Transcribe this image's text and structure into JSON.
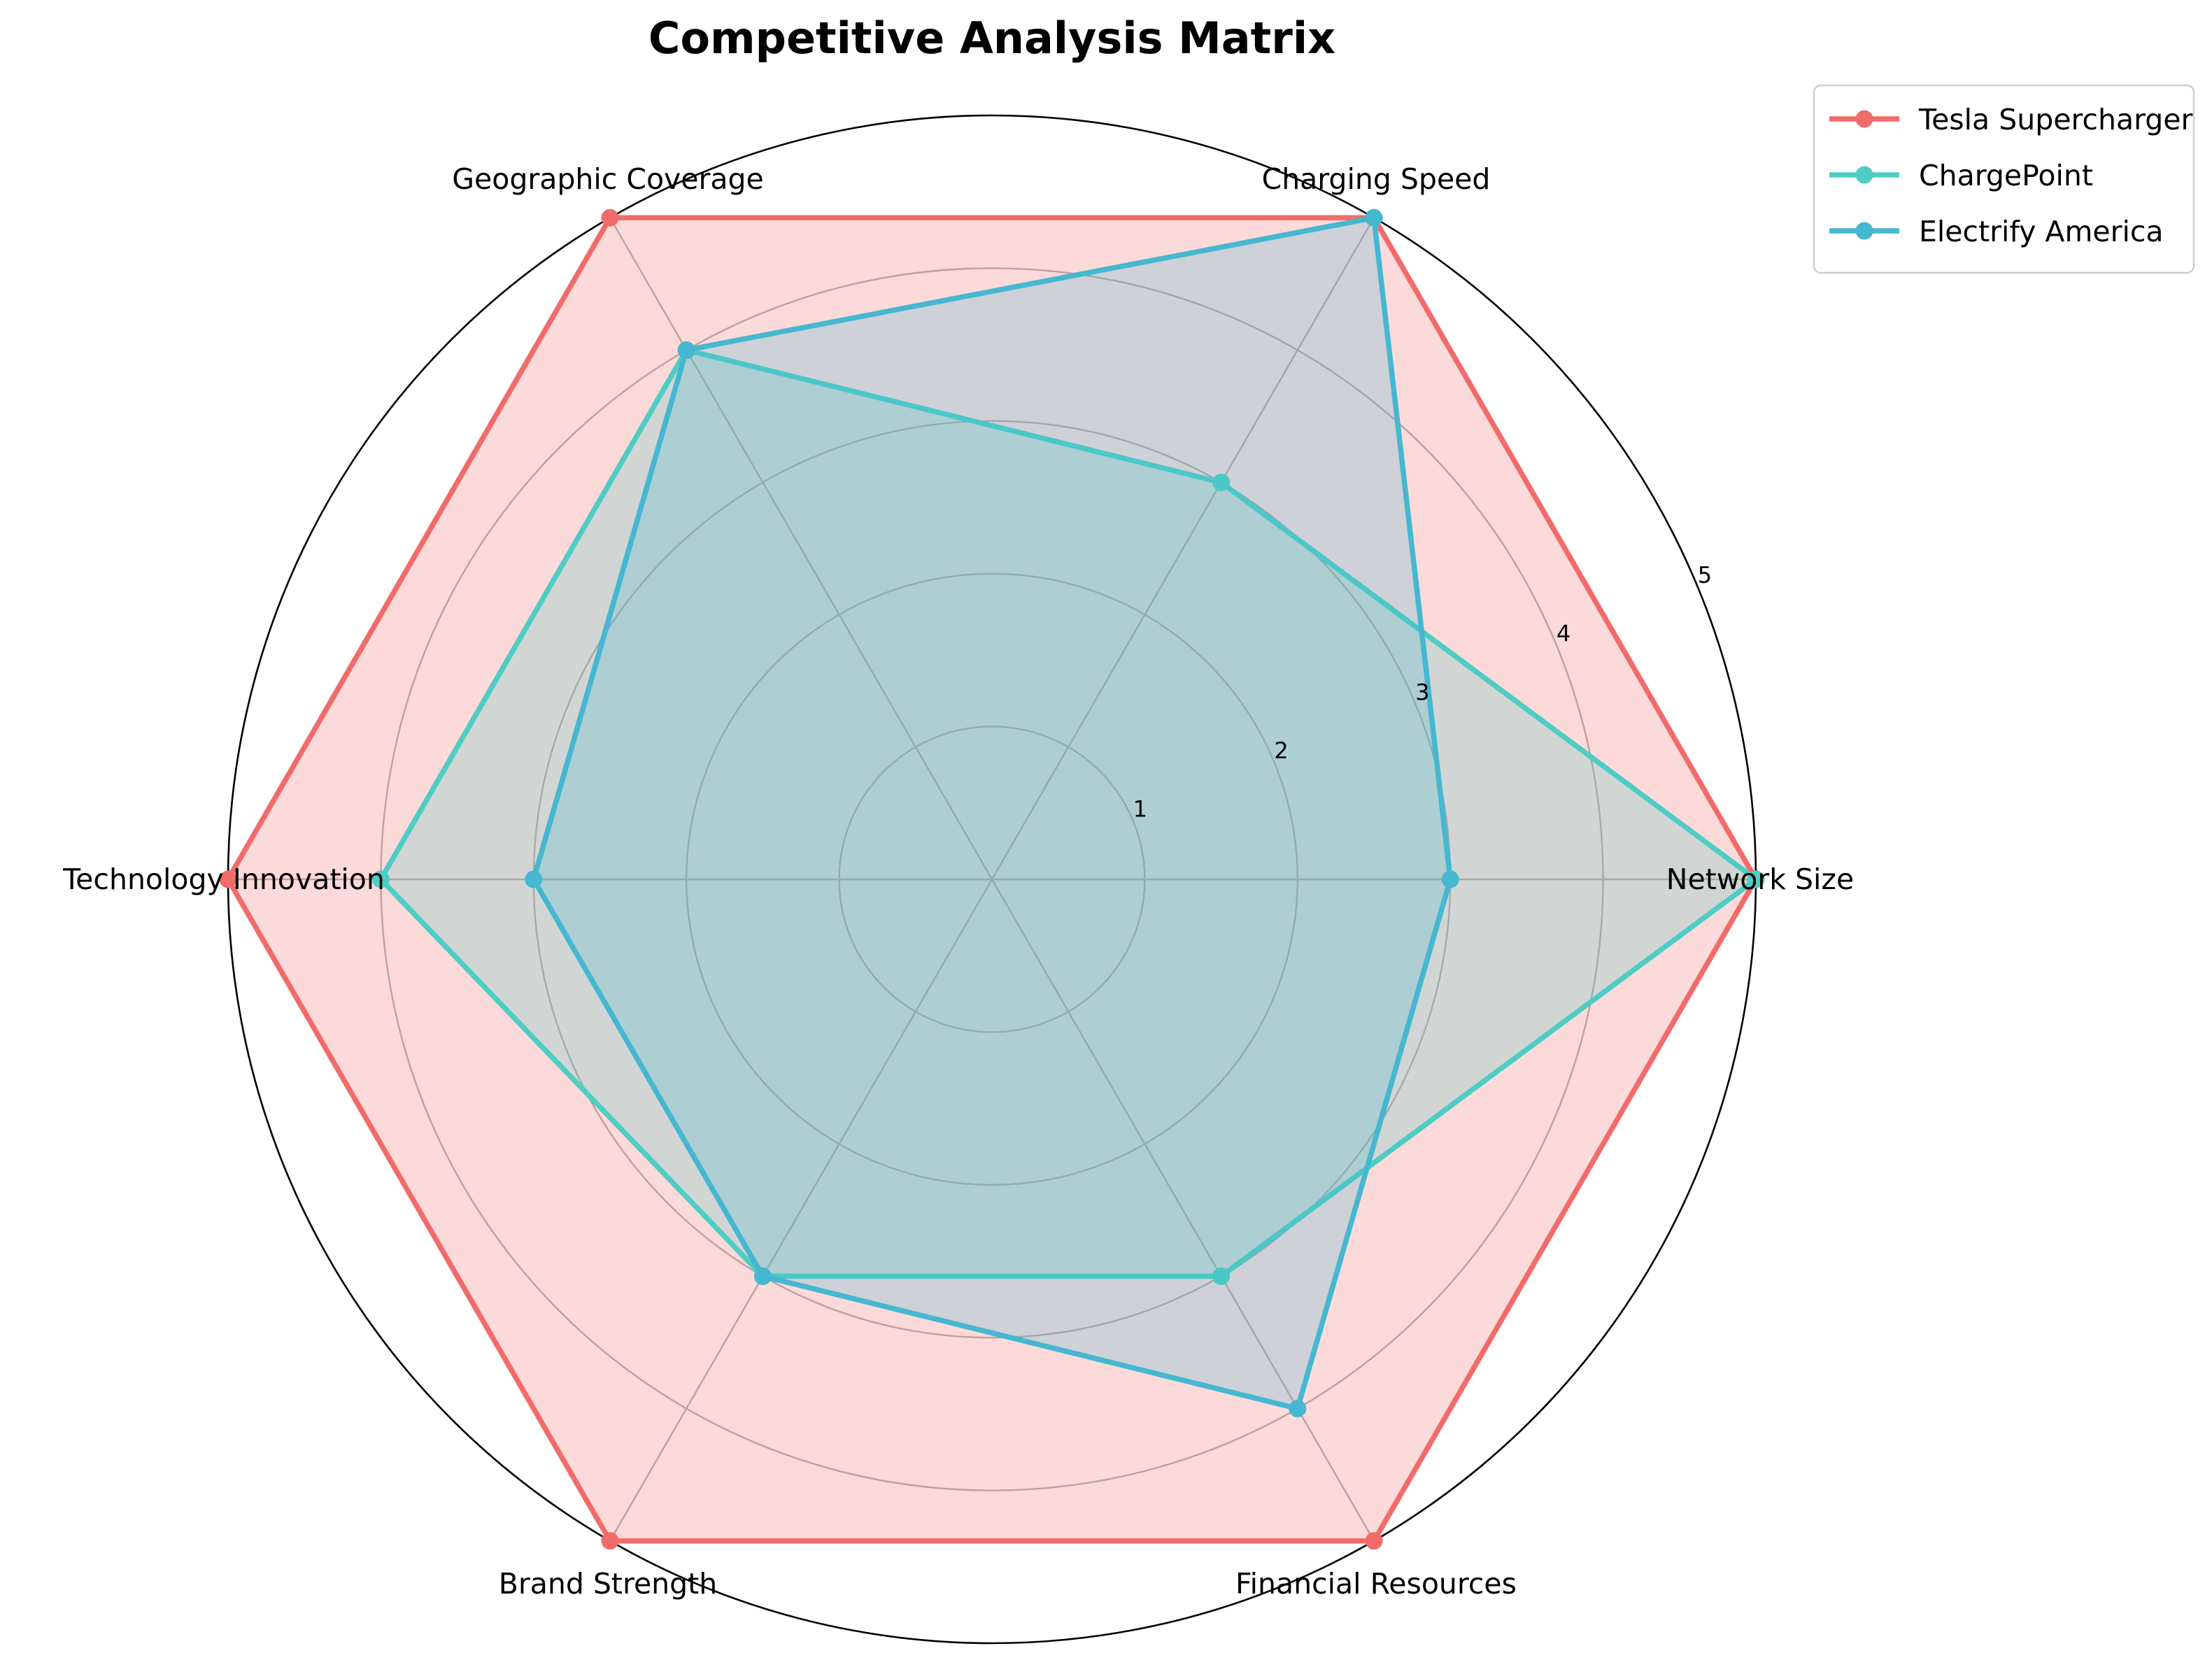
{
  "chart_data": {
    "type": "radar",
    "title": "Competitive Analysis Matrix",
    "categories": [
      "Network Size",
      "Charging Speed",
      "Geographic Coverage",
      "Technology Innovation",
      "Brand Strength",
      "Financial Resources"
    ],
    "rlim": [
      0,
      5
    ],
    "rticks": [
      1,
      2,
      3,
      4,
      5
    ],
    "rtick_labels": [
      "1",
      "2",
      "3",
      "4",
      "5"
    ],
    "grid": true,
    "legend_position": "top-right",
    "series": [
      {
        "name": "Tesla Supercharger",
        "values": [
          5,
          5,
          5,
          5,
          5,
          5
        ],
        "color": "#F26B6B",
        "fill_opacity": 0.25
      },
      {
        "name": "ChargePoint",
        "values": [
          5,
          3,
          4,
          4,
          3,
          3
        ],
        "color": "#4ECDC4",
        "fill_opacity": 0.25
      },
      {
        "name": "Electrify America",
        "values": [
          3,
          5,
          4,
          3,
          3,
          4
        ],
        "color": "#45B7D1",
        "fill_opacity": 0.25
      }
    ]
  }
}
